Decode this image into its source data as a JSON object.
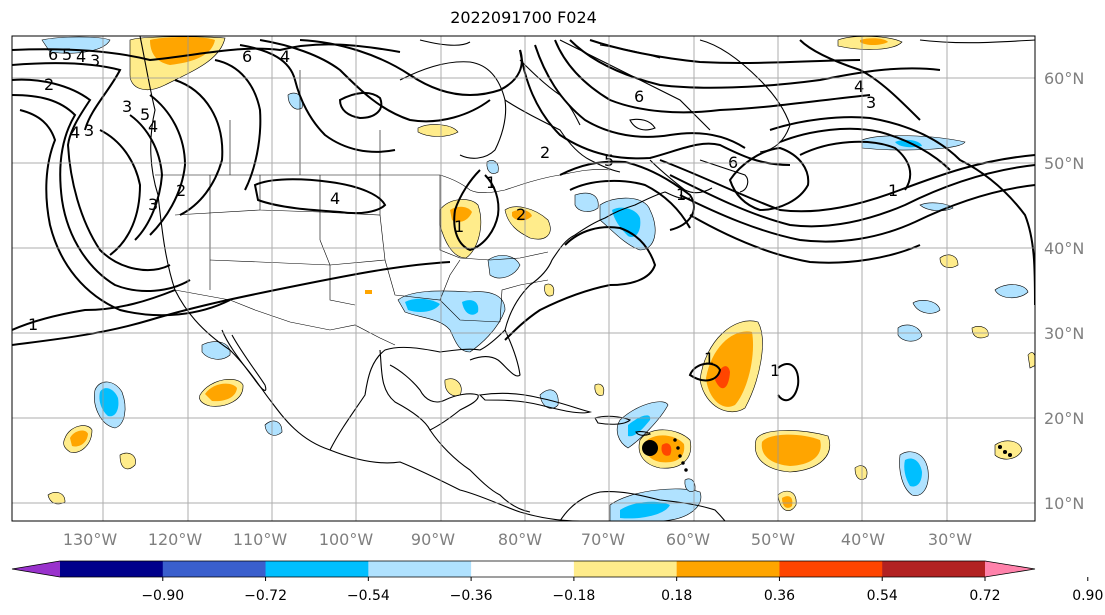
{
  "title": "2022091700 F024",
  "lon_ticks": [
    "130°W",
    "120°W",
    "110°W",
    "100°W",
    "90°W",
    "80°W",
    "70°W",
    "60°W",
    "50°W",
    "40°W",
    "30°W"
  ],
  "lat_ticks": [
    "60°N",
    "50°N",
    "40°N",
    "30°N",
    "20°N",
    "10°N"
  ],
  "colorbar": {
    "colors": [
      "#9932cc",
      "#00008b",
      "#3a5fcd",
      "#00bfff",
      "#b0e2ff",
      "#ffffff",
      "#ffec8b",
      "#ffa500",
      "#ff4500",
      "#b22222",
      "#ff82ab"
    ],
    "labels": [
      "−0.90",
      "−0.72",
      "−0.54",
      "−0.36",
      "−0.18",
      "0.18",
      "0.36",
      "0.54",
      "0.72",
      "0.90"
    ]
  },
  "contour_labels": [
    "6",
    "5",
    "4",
    "3",
    "6",
    "4",
    "3",
    "1",
    "2",
    "2",
    "4",
    "6",
    "5",
    "4",
    "3",
    "2",
    "1",
    "1",
    "4",
    "3",
    "1",
    "1",
    "6",
    "5",
    "3",
    "2",
    "1",
    "4",
    "1"
  ]
}
